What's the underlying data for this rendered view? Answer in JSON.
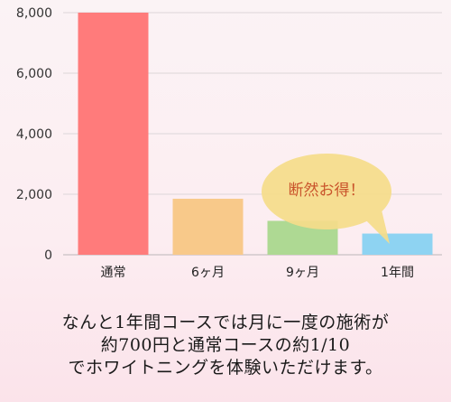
{
  "chart_data": {
    "type": "bar",
    "categories": [
      "通常",
      "6ヶ月",
      "9ヶ月",
      "1年間"
    ],
    "values": [
      8000,
      1850,
      1120,
      700
    ],
    "colors": [
      "#ff7b7b",
      "#f8c98a",
      "#aed993",
      "#8ed3f2"
    ],
    "ylim": [
      0,
      8000
    ],
    "yticks": [
      "0",
      "2,000",
      "4,000",
      "6,000",
      "8,000"
    ],
    "ytick_values": [
      0,
      2000,
      4000,
      6000,
      8000
    ],
    "grid": true,
    "annotation": {
      "text": "断然お得！",
      "category": "1年間",
      "fill": "#f5dc8a",
      "text_color": "#c9542c"
    }
  },
  "caption_lines": [
    "なんと1年間コースでは月に一度の施術が",
    "約700円と通常コースの約1/10",
    "でホワイトニングを体験いただけます。"
  ]
}
